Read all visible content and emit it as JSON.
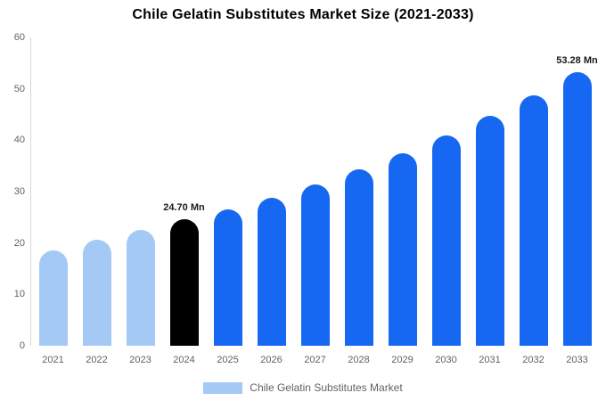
{
  "chart_data": {
    "type": "bar",
    "title": "Chile Gelatin Substitutes Market Size (2021-2033)",
    "xlabel": "",
    "ylabel": "",
    "unit": "Mn",
    "categories": [
      "2021",
      "2022",
      "2023",
      "2024",
      "2025",
      "2026",
      "2027",
      "2028",
      "2029",
      "2030",
      "2031",
      "2032",
      "2033"
    ],
    "values": [
      18.6,
      20.6,
      22.5,
      24.7,
      26.5,
      28.8,
      31.4,
      34.3,
      37.5,
      40.9,
      44.7,
      48.7,
      53.28
    ],
    "bar_roles": [
      "historical",
      "historical",
      "historical",
      "base_year",
      "forecast",
      "forecast",
      "forecast",
      "forecast",
      "forecast",
      "forecast",
      "forecast",
      "forecast",
      "forecast"
    ],
    "annotations": [
      {
        "category": "2024",
        "text": "24.70 Mn"
      },
      {
        "category": "2033",
        "text": "53.28 Mn"
      }
    ],
    "ylim": [
      0,
      60
    ],
    "yticks": [
      0,
      10,
      20,
      30,
      40,
      50,
      60
    ],
    "grid": false,
    "legend_position": "bottom",
    "colors": {
      "historical": "#a4c9f5",
      "base_year": "#000000",
      "forecast": "#1668f2",
      "axis_line": "#d7d7d7",
      "tick_text": "#5f6368"
    },
    "legend": {
      "label": "Chile Gelatin Substitutes Market",
      "swatch_color": "#a4c9f5"
    }
  }
}
